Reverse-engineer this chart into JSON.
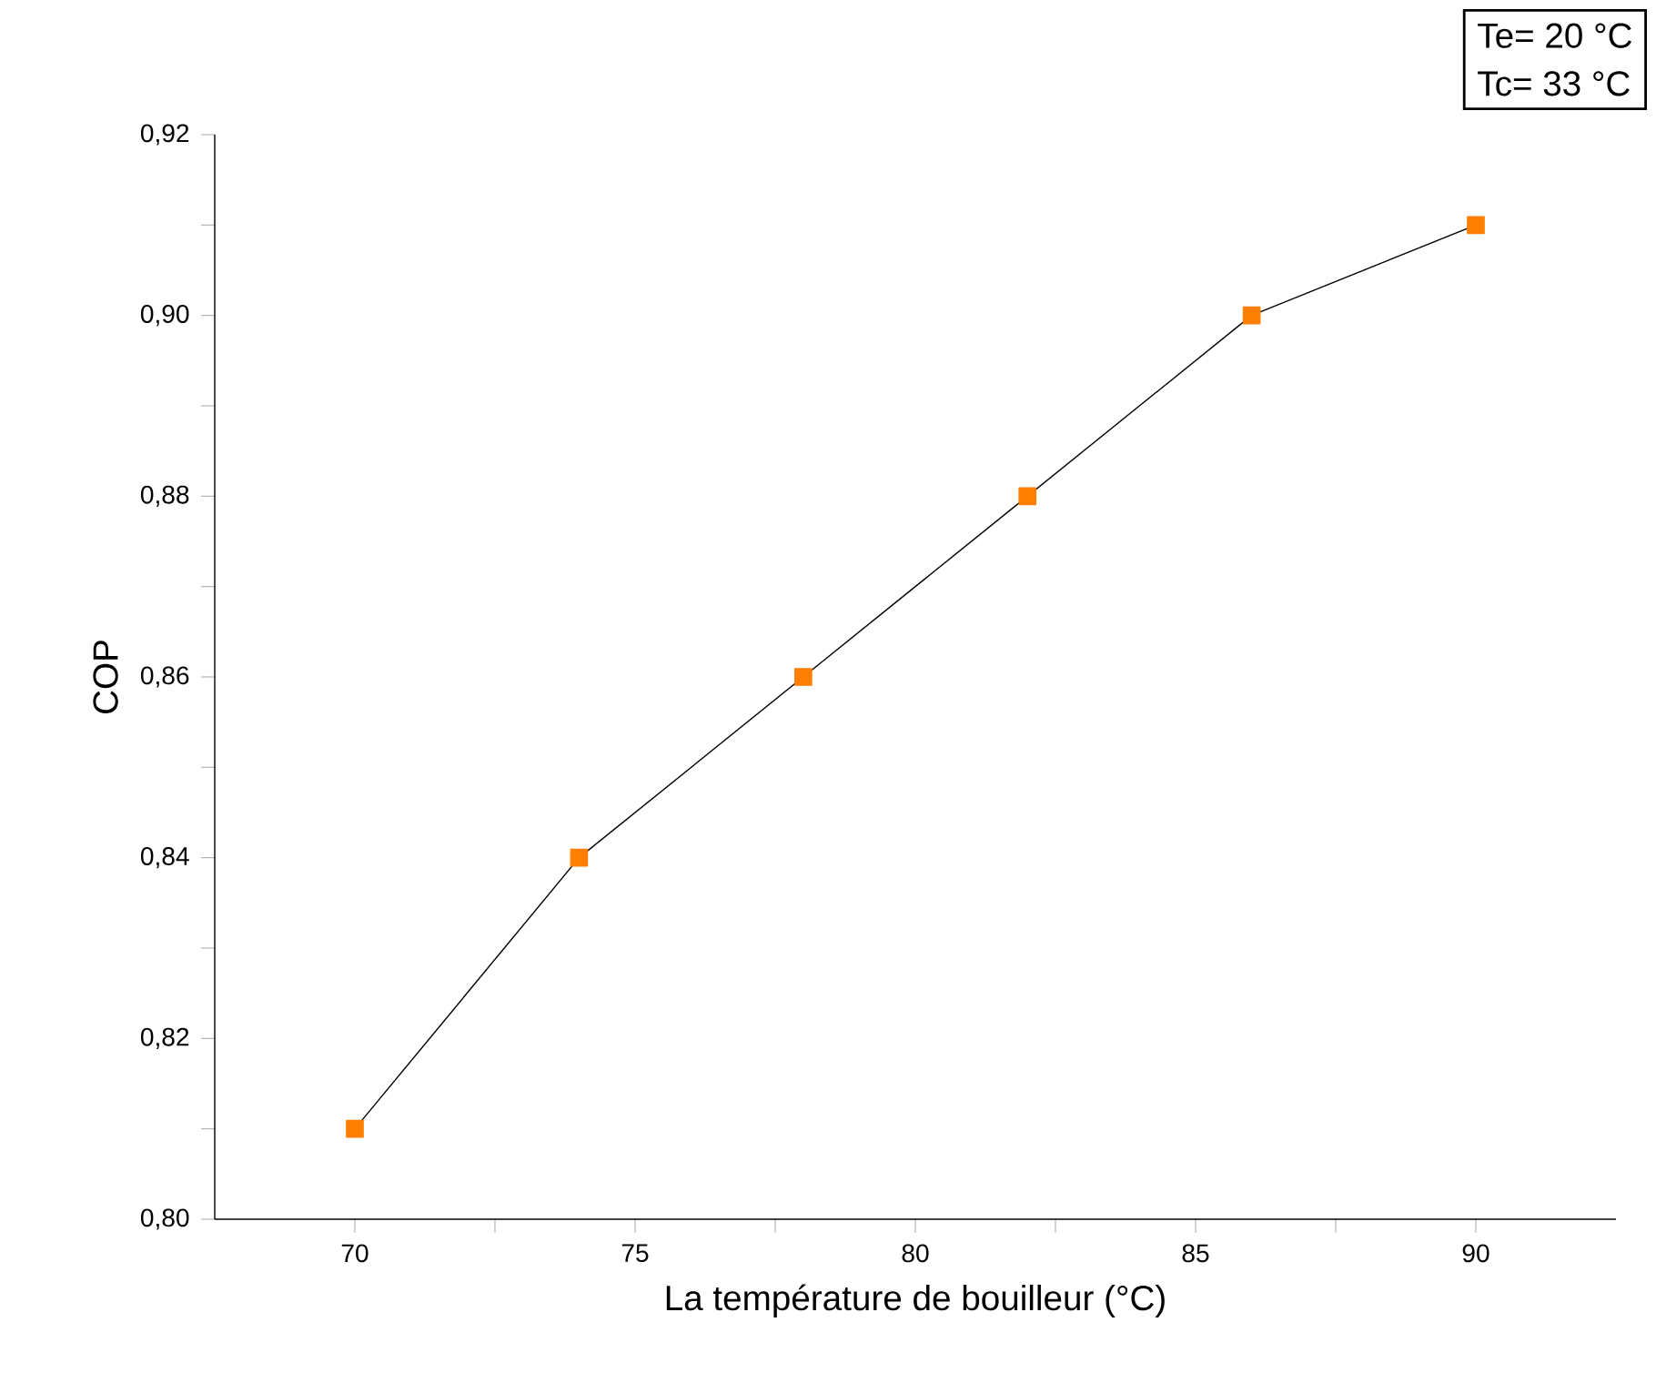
{
  "chart_data": {
    "type": "line",
    "xlabel": "La température de bouilleur (°C)",
    "ylabel": "COP",
    "annotations": [
      "Te= 20 °C",
      "Tc= 33 °C"
    ],
    "x": [
      70,
      74,
      78,
      82,
      86,
      90
    ],
    "series": [
      {
        "color": "#ff7f00",
        "values": [
          0.81,
          0.84,
          0.86,
          0.88,
          0.9,
          0.91
        ]
      }
    ],
    "marker": "square",
    "line_style": "solid",
    "grid": false,
    "xlim": [
      67.5,
      92.5
    ],
    "xticks": [
      70,
      {
        "value": 72.5,
        "label": null
      },
      75,
      {
        "value": 77.5,
        "label": null
      },
      80,
      {
        "value": 82.5,
        "label": null
      },
      85,
      {
        "value": 87.5,
        "label": null
      },
      90
    ],
    "ylim": [
      0.8,
      0.92
    ],
    "yticks": [
      {
        "value": 0.8,
        "label": "0,80"
      },
      {
        "value": 0.81,
        "label": null
      },
      {
        "value": 0.82,
        "label": "0,82"
      },
      {
        "value": 0.83,
        "label": null
      },
      {
        "value": 0.84,
        "label": "0,84"
      },
      {
        "value": 0.85,
        "label": null
      },
      {
        "value": 0.86,
        "label": "0,86"
      },
      {
        "value": 0.87,
        "label": null
      },
      {
        "value": 0.88,
        "label": "0,88"
      },
      {
        "value": 0.89,
        "label": null
      },
      {
        "value": 0.9,
        "label": "0,90"
      },
      {
        "value": 0.91,
        "label": null
      },
      {
        "value": 0.92,
        "label": "0,92"
      }
    ]
  }
}
